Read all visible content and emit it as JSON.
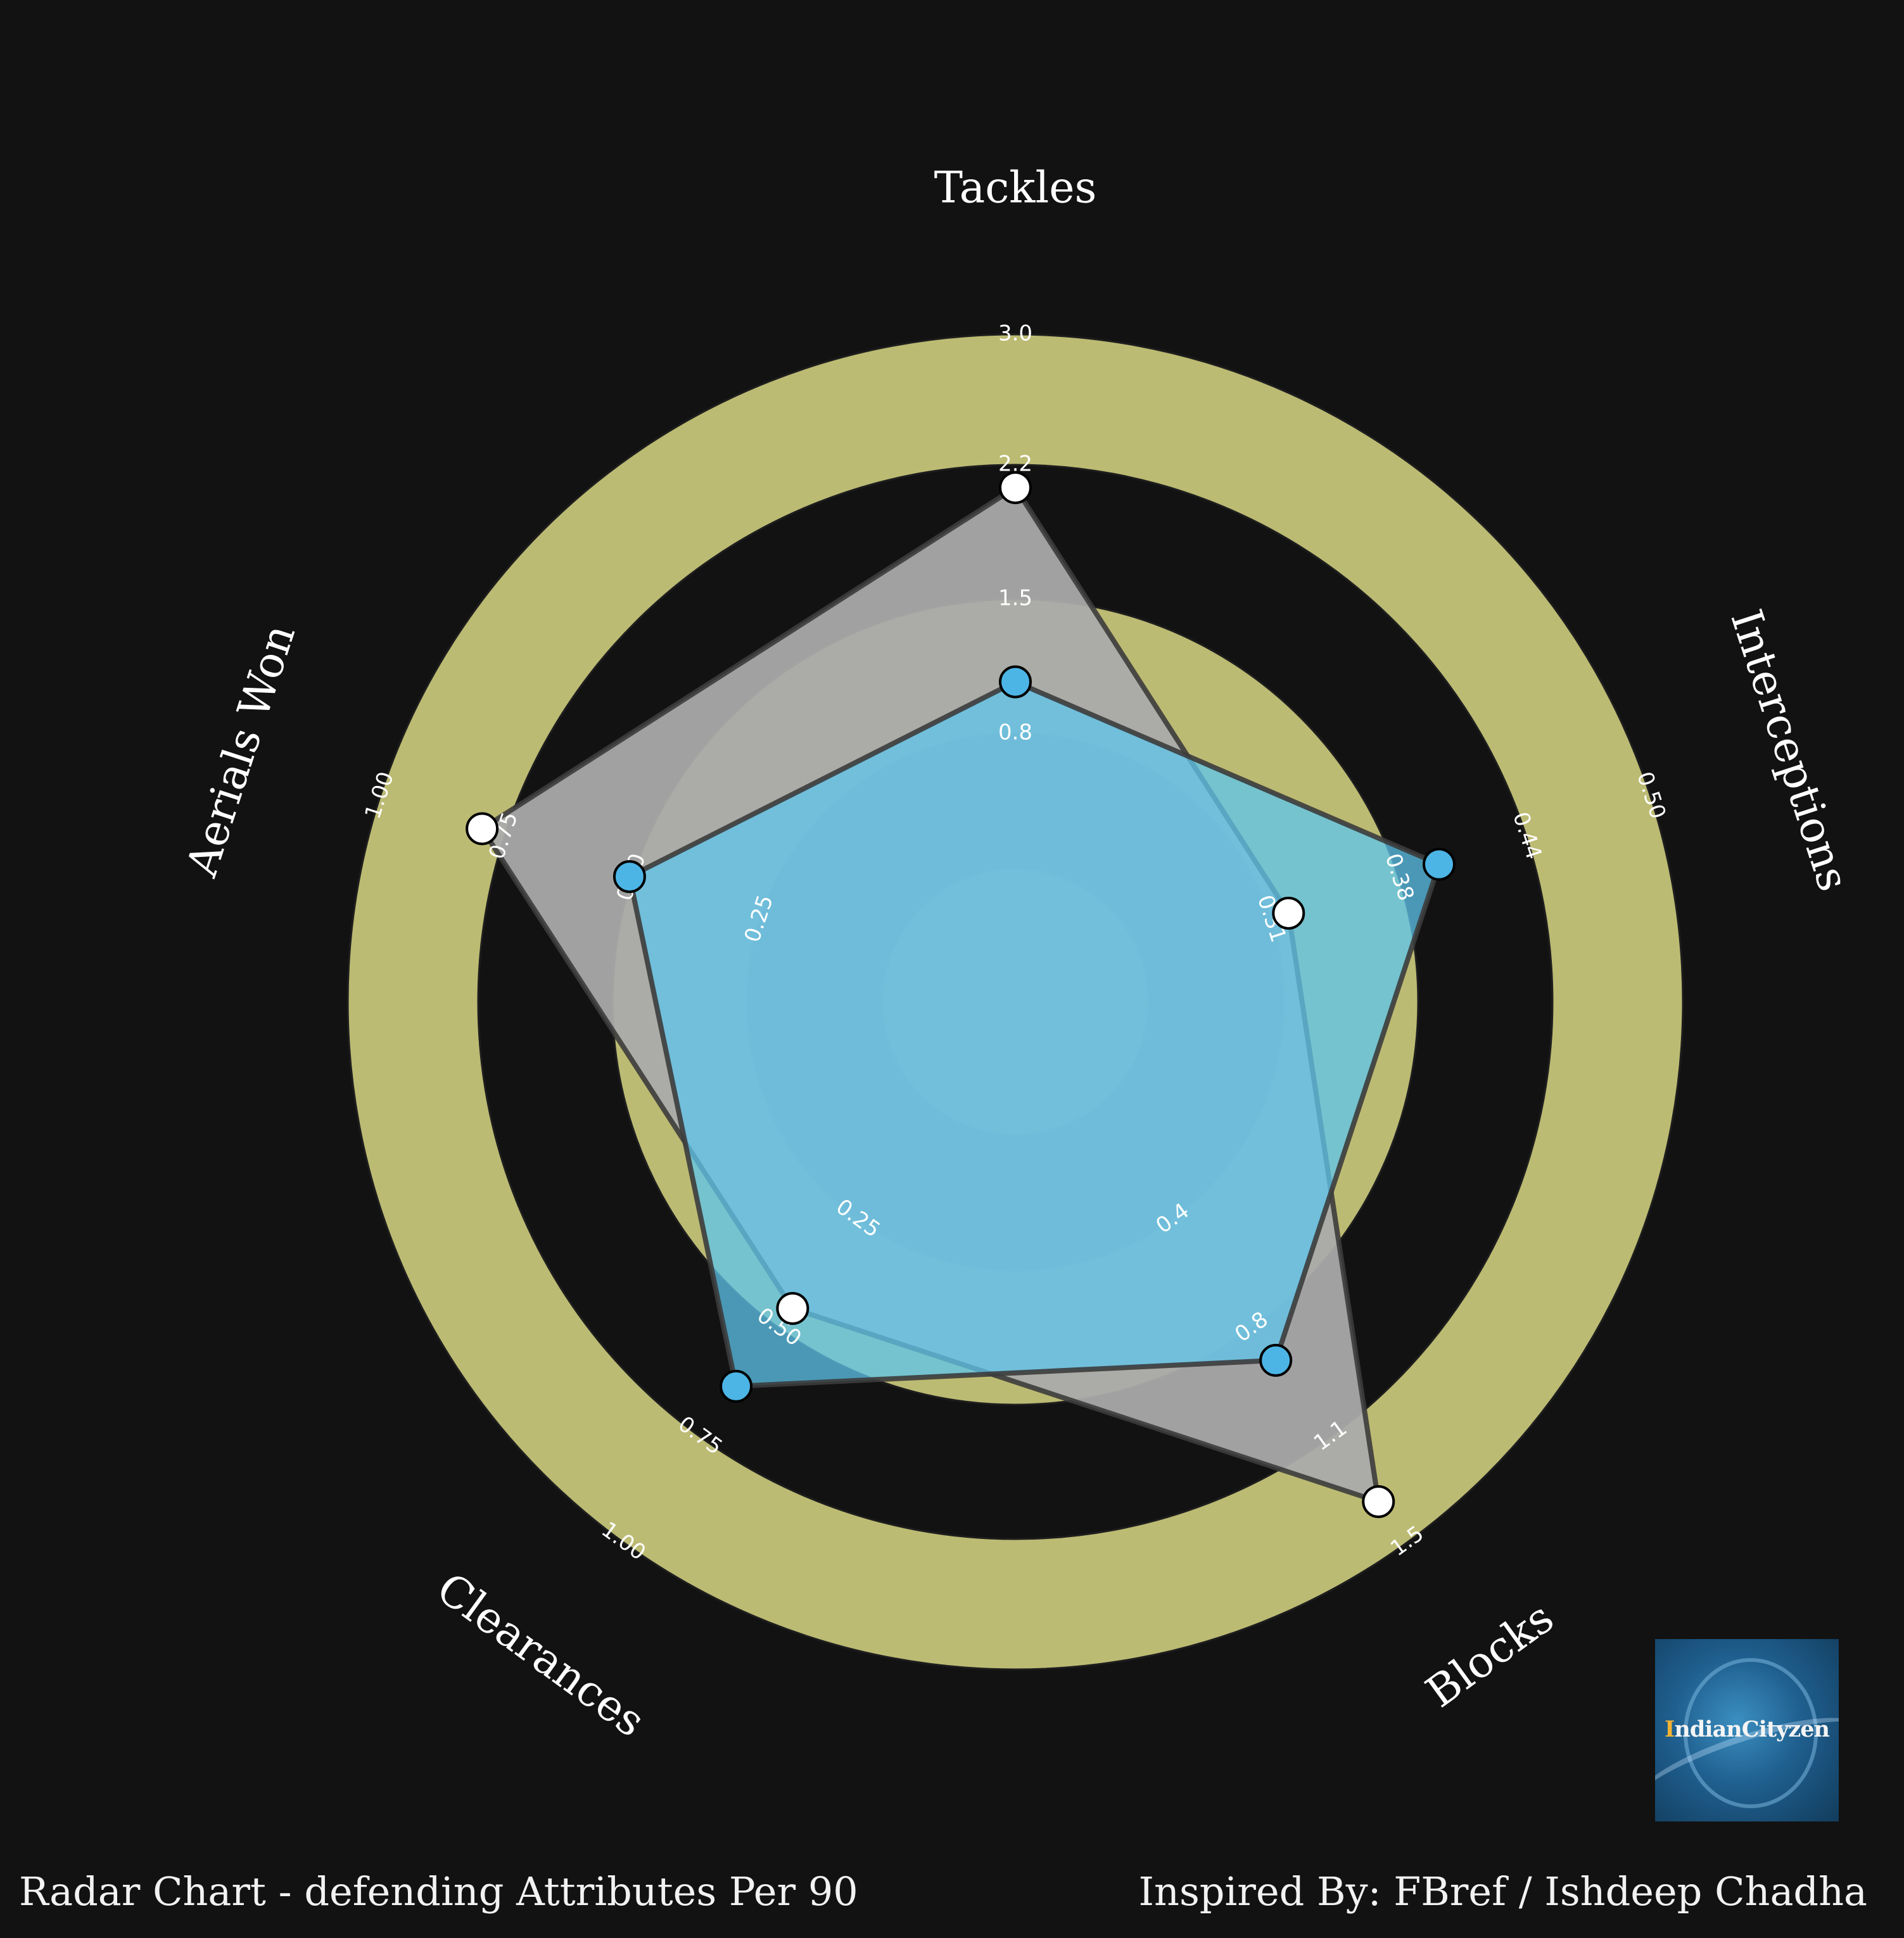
{
  "chart_data": {
    "type": "radar",
    "title": "",
    "axes": [
      "Tackles",
      "Interceptions",
      "Blocks",
      "Clearances",
      "Aerials Won"
    ],
    "ranges": [
      {
        "min": 0,
        "max": 3.0,
        "ticks": [
          "0.8",
          "1.5",
          "2.2",
          "3.0"
        ]
      },
      {
        "min": 0.24,
        "max": 0.5,
        "ticks": [
          "0.31",
          "0.38",
          "0.44",
          "0.50"
        ]
      },
      {
        "min": 0,
        "max": 1.5,
        "ticks": [
          "0.4",
          "0.8",
          "1.1",
          "1.5"
        ]
      },
      {
        "min": 0,
        "max": 1.0,
        "ticks": [
          "0.25",
          "0.50",
          "0.75",
          "1.00"
        ]
      },
      {
        "min": 0,
        "max": 1.0,
        "ticks": [
          "0.25",
          "0.50",
          "0.75",
          "1.00"
        ]
      }
    ],
    "series": [
      {
        "values": [
          2.14,
          0.315,
          1.36,
          0.46,
          0.8
        ],
        "fill": "#aaaaaa",
        "marker": "#ffffff",
        "fill_opacity": 0.95
      },
      {
        "values": [
          1.05,
          0.392,
          0.87,
          0.64,
          0.51
        ],
        "fill": "#5ec6ec",
        "marker": "#4cb5e6",
        "fill_opacity": 0.75
      }
    ],
    "rings": {
      "count": 5,
      "colors": [
        "#bcbb73",
        "#121212"
      ]
    },
    "grid": false,
    "legend": "none"
  },
  "footer": {
    "left": "Radar Chart - defending Attributes Per 90",
    "right": "Inspired By: FBref / Ishdeep Chadha"
  },
  "logo": {
    "text_highlight": "I",
    "text_rest": "ndianCityzen",
    "icon": "manchester-city-crest-icon"
  },
  "colors": {
    "background": "#121212",
    "ring_band": "#bcbb73",
    "ring_gap": "#121212",
    "text": "#ffffff"
  }
}
